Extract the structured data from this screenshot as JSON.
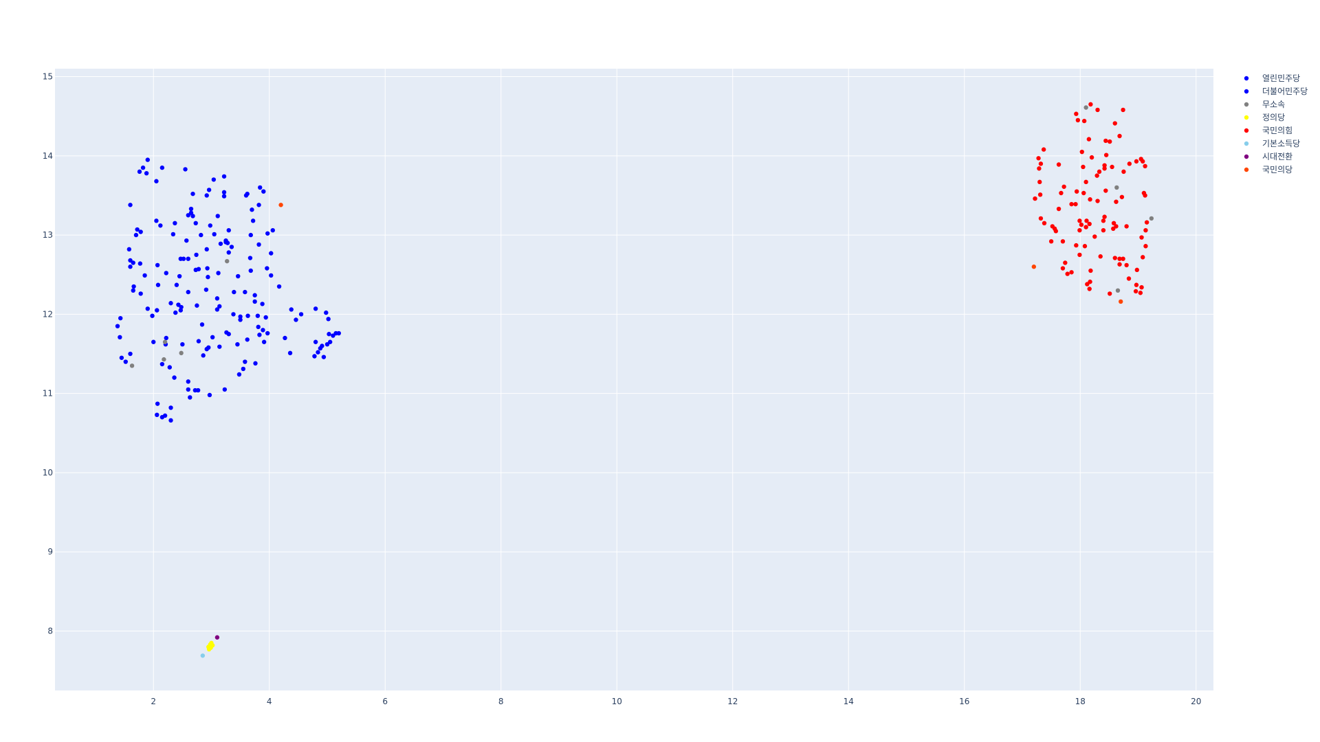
{
  "chart_data": {
    "type": "scatter",
    "title": "",
    "xlabel": "",
    "ylabel": "",
    "xlim": [
      0.3,
      20.3
    ],
    "ylim": [
      7.25,
      15.1
    ],
    "x_ticks": [
      2,
      4,
      6,
      8,
      10,
      12,
      14,
      16,
      18,
      20
    ],
    "y_ticks": [
      8,
      9,
      10,
      11,
      12,
      13,
      14,
      15
    ],
    "grid": true,
    "legend_position": "top-right",
    "colors": {
      "plot_background": "#e5ecf6",
      "grid": "#ffffff",
      "tick_text": "#2a3f5f"
    },
    "series": [
      {
        "name": "열린민주당",
        "color": "#0000ff",
        "points": [
          [
            1.6,
            12.6
          ]
        ]
      },
      {
        "name": "더불어민주당",
        "color": "#0000ff",
        "points": [
          [
            1.9,
            13.95
          ],
          [
            1.82,
            13.85
          ],
          [
            1.76,
            13.8
          ],
          [
            1.88,
            13.78
          ],
          [
            2.15,
            13.85
          ],
          [
            2.55,
            13.83
          ],
          [
            2.05,
            13.68
          ],
          [
            1.6,
            13.38
          ],
          [
            2.05,
            13.18
          ],
          [
            2.12,
            13.12
          ],
          [
            1.72,
            13.07
          ],
          [
            1.78,
            13.04
          ],
          [
            1.7,
            13.0
          ],
          [
            1.58,
            12.82
          ],
          [
            1.6,
            12.68
          ],
          [
            1.65,
            12.65
          ],
          [
            1.77,
            12.64
          ],
          [
            2.07,
            12.62
          ],
          [
            2.22,
            12.52
          ],
          [
            1.85,
            12.49
          ],
          [
            1.66,
            12.35
          ],
          [
            1.65,
            12.3
          ],
          [
            1.78,
            12.26
          ],
          [
            2.08,
            12.37
          ],
          [
            2.3,
            12.14
          ],
          [
            1.9,
            12.07
          ],
          [
            2.06,
            12.05
          ],
          [
            1.98,
            11.98
          ],
          [
            1.43,
            11.95
          ],
          [
            1.38,
            11.85
          ],
          [
            1.42,
            11.71
          ],
          [
            2.0,
            11.65
          ],
          [
            2.22,
            11.7
          ],
          [
            2.21,
            11.62
          ],
          [
            1.6,
            11.5
          ],
          [
            1.45,
            11.45
          ],
          [
            1.52,
            11.4
          ],
          [
            2.15,
            11.37
          ],
          [
            2.28,
            11.33
          ],
          [
            2.36,
            11.2
          ],
          [
            2.37,
            13.15
          ],
          [
            2.34,
            13.01
          ],
          [
            2.57,
            12.93
          ],
          [
            2.52,
            12.7
          ],
          [
            2.47,
            12.7
          ],
          [
            2.6,
            12.7
          ],
          [
            2.45,
            12.48
          ],
          [
            2.4,
            12.37
          ],
          [
            2.6,
            12.28
          ],
          [
            2.48,
            12.09
          ],
          [
            2.43,
            12.12
          ],
          [
            2.47,
            12.05
          ],
          [
            2.38,
            12.02
          ],
          [
            2.5,
            11.62
          ],
          [
            2.6,
            11.15
          ],
          [
            2.6,
            11.05
          ],
          [
            2.72,
            11.04
          ],
          [
            2.77,
            11.04
          ],
          [
            2.63,
            10.95
          ],
          [
            2.07,
            10.87
          ],
          [
            2.3,
            10.82
          ],
          [
            2.2,
            10.72
          ],
          [
            2.06,
            10.73
          ],
          [
            2.15,
            10.7
          ],
          [
            2.3,
            10.66
          ],
          [
            2.97,
            10.98
          ],
          [
            2.68,
            13.52
          ],
          [
            2.65,
            13.28
          ],
          [
            2.6,
            13.25
          ],
          [
            2.68,
            13.24
          ],
          [
            2.65,
            13.33
          ],
          [
            2.92,
            13.5
          ],
          [
            2.96,
            13.57
          ],
          [
            3.04,
            13.7
          ],
          [
            3.22,
            13.74
          ],
          [
            3.22,
            13.54
          ],
          [
            3.22,
            13.49
          ],
          [
            3.11,
            13.24
          ],
          [
            2.82,
            13.0
          ],
          [
            2.98,
            13.12
          ],
          [
            2.73,
            13.15
          ],
          [
            3.05,
            13.01
          ],
          [
            3.16,
            12.89
          ],
          [
            3.25,
            12.91
          ],
          [
            3.28,
            12.9
          ],
          [
            3.25,
            12.93
          ],
          [
            3.3,
            13.06
          ],
          [
            3.35,
            12.85
          ],
          [
            3.3,
            12.78
          ],
          [
            2.92,
            12.82
          ],
          [
            2.74,
            12.75
          ],
          [
            2.78,
            12.57
          ],
          [
            2.73,
            12.56
          ],
          [
            2.93,
            12.58
          ],
          [
            2.94,
            12.47
          ],
          [
            2.91,
            12.31
          ],
          [
            3.1,
            12.2
          ],
          [
            3.12,
            12.52
          ],
          [
            3.14,
            12.1
          ],
          [
            3.1,
            12.06
          ],
          [
            2.75,
            12.11
          ],
          [
            2.84,
            11.87
          ],
          [
            3.02,
            11.71
          ],
          [
            3.26,
            11.77
          ],
          [
            3.3,
            11.75
          ],
          [
            2.92,
            11.56
          ],
          [
            2.95,
            11.58
          ],
          [
            3.14,
            11.59
          ],
          [
            2.86,
            11.48
          ],
          [
            2.78,
            11.66
          ],
          [
            3.23,
            11.05
          ],
          [
            3.6,
            13.5
          ],
          [
            3.62,
            13.52
          ],
          [
            3.7,
            13.32
          ],
          [
            3.72,
            13.18
          ],
          [
            3.84,
            13.6
          ],
          [
            3.9,
            13.55
          ],
          [
            3.82,
            13.38
          ],
          [
            3.68,
            13.0
          ],
          [
            3.97,
            13.02
          ],
          [
            3.82,
            12.88
          ],
          [
            3.96,
            12.58
          ],
          [
            4.06,
            13.06
          ],
          [
            4.03,
            12.77
          ],
          [
            4.03,
            12.49
          ],
          [
            3.46,
            12.48
          ],
          [
            3.67,
            12.71
          ],
          [
            3.68,
            12.55
          ],
          [
            3.58,
            12.28
          ],
          [
            3.75,
            12.24
          ],
          [
            3.75,
            12.16
          ],
          [
            3.88,
            12.13
          ],
          [
            3.39,
            12.28
          ],
          [
            4.17,
            12.35
          ],
          [
            3.38,
            12.0
          ],
          [
            3.5,
            11.97
          ],
          [
            3.5,
            11.93
          ],
          [
            3.63,
            11.98
          ],
          [
            3.8,
            11.98
          ],
          [
            3.94,
            11.96
          ],
          [
            3.81,
            11.84
          ],
          [
            3.89,
            11.8
          ],
          [
            3.97,
            11.76
          ],
          [
            3.83,
            11.74
          ],
          [
            3.91,
            11.65
          ],
          [
            3.62,
            11.68
          ],
          [
            3.45,
            11.62
          ],
          [
            3.58,
            11.4
          ],
          [
            3.76,
            11.38
          ],
          [
            3.55,
            11.31
          ],
          [
            3.48,
            11.24
          ],
          [
            4.27,
            11.7
          ],
          [
            4.38,
            12.06
          ],
          [
            4.46,
            11.93
          ],
          [
            4.55,
            12.0
          ],
          [
            4.8,
            12.07
          ],
          [
            4.98,
            12.02
          ],
          [
            5.02,
            11.94
          ],
          [
            5.03,
            11.75
          ],
          [
            5.1,
            11.73
          ],
          [
            5.15,
            11.76
          ],
          [
            5.2,
            11.76
          ],
          [
            4.8,
            11.65
          ],
          [
            4.88,
            11.57
          ],
          [
            4.91,
            11.6
          ],
          [
            5.0,
            11.62
          ],
          [
            5.05,
            11.65
          ],
          [
            4.78,
            11.47
          ],
          [
            4.84,
            11.52
          ],
          [
            4.94,
            11.46
          ],
          [
            4.36,
            11.51
          ]
        ]
      },
      {
        "name": "무소속",
        "color": "#808080",
        "points": [
          [
            3.27,
            12.67
          ],
          [
            2.2,
            11.65
          ],
          [
            2.18,
            11.43
          ],
          [
            2.48,
            11.51
          ],
          [
            1.63,
            11.35
          ],
          [
            18.1,
            14.61
          ],
          [
            18.63,
            13.6
          ],
          [
            19.23,
            13.21
          ],
          [
            18.65,
            12.3
          ]
        ]
      },
      {
        "name": "정의당",
        "color": "#ffff00",
        "points": [
          [
            2.95,
            7.8
          ],
          [
            2.98,
            7.83
          ],
          [
            3.0,
            7.85
          ],
          [
            3.02,
            7.82
          ],
          [
            2.96,
            7.77
          ],
          [
            2.99,
            7.79
          ]
        ]
      },
      {
        "name": "국민의힘",
        "color": "#ff0000",
        "points": [
          [
            18.18,
            14.65
          ],
          [
            18.3,
            14.58
          ],
          [
            18.74,
            14.58
          ],
          [
            17.93,
            14.53
          ],
          [
            17.96,
            14.45
          ],
          [
            18.07,
            14.44
          ],
          [
            18.6,
            14.41
          ],
          [
            18.68,
            14.25
          ],
          [
            18.15,
            14.21
          ],
          [
            18.44,
            14.19
          ],
          [
            18.51,
            14.18
          ],
          [
            17.37,
            14.08
          ],
          [
            18.03,
            14.05
          ],
          [
            18.45,
            14.01
          ],
          [
            17.28,
            13.97
          ],
          [
            18.2,
            13.98
          ],
          [
            19.05,
            13.96
          ],
          [
            18.97,
            13.93
          ],
          [
            19.08,
            13.93
          ],
          [
            18.85,
            13.9
          ],
          [
            17.32,
            13.9
          ],
          [
            17.63,
            13.89
          ],
          [
            18.42,
            13.88
          ],
          [
            17.29,
            13.84
          ],
          [
            19.12,
            13.87
          ],
          [
            18.05,
            13.86
          ],
          [
            18.42,
            13.84
          ],
          [
            18.33,
            13.8
          ],
          [
            18.55,
            13.86
          ],
          [
            18.75,
            13.8
          ],
          [
            18.29,
            13.75
          ],
          [
            17.3,
            13.67
          ],
          [
            18.1,
            13.67
          ],
          [
            17.72,
            13.61
          ],
          [
            18.44,
            13.56
          ],
          [
            17.94,
            13.55
          ],
          [
            19.1,
            13.53
          ],
          [
            17.31,
            13.51
          ],
          [
            17.67,
            13.53
          ],
          [
            18.06,
            13.53
          ],
          [
            19.12,
            13.5
          ],
          [
            18.72,
            13.48
          ],
          [
            17.22,
            13.46
          ],
          [
            18.17,
            13.45
          ],
          [
            18.3,
            13.43
          ],
          [
            18.62,
            13.42
          ],
          [
            17.85,
            13.39
          ],
          [
            17.92,
            13.39
          ],
          [
            17.63,
            13.33
          ],
          [
            18.42,
            13.23
          ],
          [
            17.32,
            13.21
          ],
          [
            17.99,
            13.18
          ],
          [
            18.11,
            13.18
          ],
          [
            18.4,
            13.18
          ],
          [
            18.02,
            13.13
          ],
          [
            18.16,
            13.14
          ],
          [
            18.58,
            13.15
          ],
          [
            19.15,
            13.16
          ],
          [
            17.38,
            13.15
          ],
          [
            17.52,
            13.11
          ],
          [
            17.56,
            13.08
          ],
          [
            18.1,
            13.1
          ],
          [
            18.62,
            13.11
          ],
          [
            18.8,
            13.11
          ],
          [
            17.58,
            13.05
          ],
          [
            17.99,
            13.06
          ],
          [
            18.4,
            13.06
          ],
          [
            18.57,
            13.08
          ],
          [
            19.13,
            13.06
          ],
          [
            18.25,
            12.98
          ],
          [
            19.06,
            12.97
          ],
          [
            17.5,
            12.92
          ],
          [
            17.93,
            12.87
          ],
          [
            18.08,
            12.86
          ],
          [
            19.13,
            12.86
          ],
          [
            17.7,
            12.92
          ],
          [
            17.99,
            12.75
          ],
          [
            18.35,
            12.73
          ],
          [
            18.6,
            12.71
          ],
          [
            18.68,
            12.7
          ],
          [
            18.74,
            12.7
          ],
          [
            19.08,
            12.72
          ],
          [
            17.74,
            12.65
          ],
          [
            18.68,
            12.63
          ],
          [
            18.8,
            12.62
          ],
          [
            17.7,
            12.58
          ],
          [
            18.98,
            12.56
          ],
          [
            18.18,
            12.55
          ],
          [
            17.78,
            12.51
          ],
          [
            17.85,
            12.53
          ],
          [
            18.84,
            12.45
          ],
          [
            18.12,
            12.38
          ],
          [
            18.17,
            12.41
          ],
          [
            18.97,
            12.37
          ],
          [
            19.06,
            12.34
          ],
          [
            18.16,
            12.32
          ],
          [
            19.04,
            12.27
          ],
          [
            18.96,
            12.29
          ],
          [
            18.51,
            12.26
          ]
        ]
      },
      {
        "name": "기본소득당",
        "color": "#87ceeb",
        "points": [
          [
            2.85,
            7.69
          ]
        ]
      },
      {
        "name": "시대전환",
        "color": "#800080",
        "points": [
          [
            3.1,
            7.92
          ]
        ]
      },
      {
        "name": "국민의당",
        "color": "#ff4500",
        "points": [
          [
            4.2,
            13.38
          ],
          [
            17.2,
            12.6
          ],
          [
            18.7,
            12.16
          ]
        ]
      }
    ]
  }
}
